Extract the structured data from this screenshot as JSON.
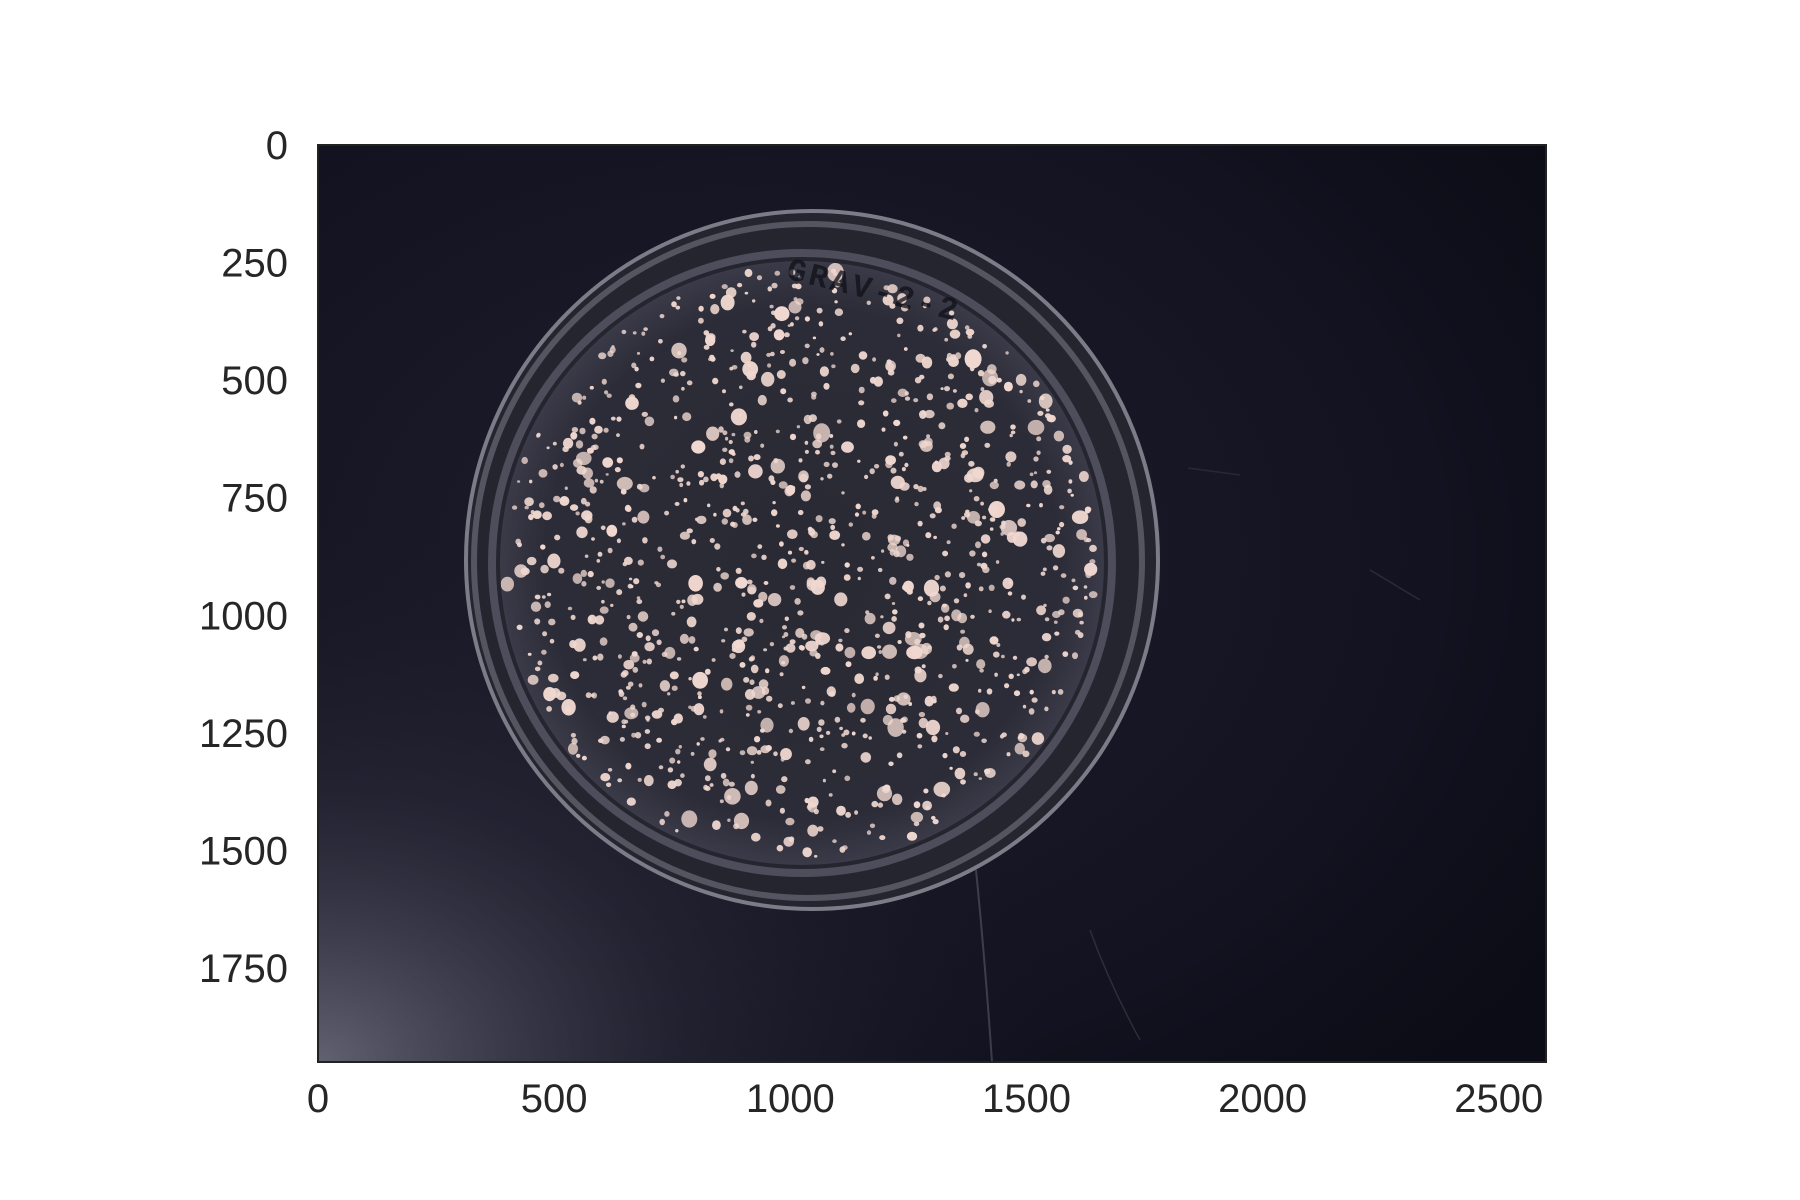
{
  "figure": {
    "image_description_none": "",
    "x_axis": {
      "ticks": [
        "0",
        "500",
        "1000",
        "1500",
        "2000",
        "2500"
      ],
      "range": [
        0,
        2600
      ]
    },
    "y_axis": {
      "ticks": [
        "0",
        "250",
        "500",
        "750",
        "1000",
        "1250",
        "1500",
        "1750"
      ],
      "range": [
        0,
        1950
      ]
    },
    "plate_label_text": "GRAV-2-2",
    "colors": {
      "background_dark": "#141420",
      "plate_rim": "#8a8a96",
      "colony": "#f0d8d0",
      "frame": "#222222",
      "tick_text": "#262626"
    }
  }
}
